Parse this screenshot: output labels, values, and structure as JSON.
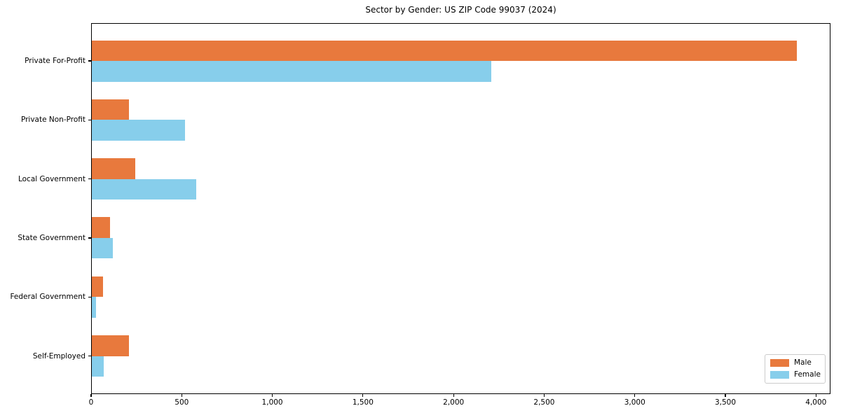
{
  "title": "Sector by Gender: US ZIP Code 99037 (2024)",
  "chart_data": {
    "type": "bar",
    "orientation": "horizontal",
    "title": "Sector by Gender: US ZIP Code 99037 (2024)",
    "xlabel": "",
    "ylabel": "",
    "categories": [
      "Private For-Profit",
      "Private Non-Profit",
      "Local Government",
      "State Government",
      "Federal Government",
      "Self-Employed"
    ],
    "series": [
      {
        "name": "Male",
        "color": "#e8793d",
        "values": [
          3890,
          205,
          240,
          100,
          60,
          205
        ]
      },
      {
        "name": "Female",
        "color": "#87ceeb",
        "values": [
          2205,
          515,
          575,
          115,
          25,
          65
        ]
      }
    ],
    "xlim": [
      0,
      4080
    ],
    "x_ticks": [
      0,
      500,
      1000,
      1500,
      2000,
      2500,
      3000,
      3500,
      4000
    ],
    "x_tick_labels": [
      "0",
      "500",
      "1,000",
      "1,500",
      "2,000",
      "2,500",
      "3,000",
      "3,500",
      "4,000"
    ],
    "legend_position": "lower right",
    "grid": false,
    "colors": {
      "male": "#e8793d",
      "female": "#87ceeb",
      "spine": "#000000",
      "legend_border": "#cccccc"
    }
  }
}
